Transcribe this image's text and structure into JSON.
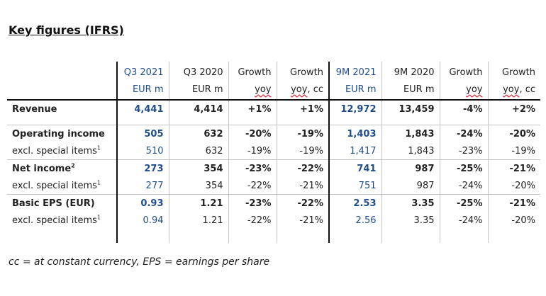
{
  "title": "Key figures (IFRS)",
  "headers": [
    {
      "line1": "Q3 2021",
      "line2": "EUR m",
      "accent": true
    },
    {
      "line1": "Q3 2020",
      "line2": "EUR m",
      "accent": false
    },
    {
      "line1": "Growth",
      "line2_a": "yoy",
      "line2_b": "",
      "accent": false
    },
    {
      "line1": "Growth",
      "line2_a": "yoy",
      "line2_b": ", cc",
      "accent": false
    },
    {
      "line1": "9M 2021",
      "line2": "EUR m",
      "accent": true
    },
    {
      "line1": "9M 2020",
      "line2": "EUR m",
      "accent": false
    },
    {
      "line1": "Growth",
      "line2_a": "yoy",
      "line2_b": "",
      "accent": false
    },
    {
      "line1": "Growth",
      "line2_a": "yoy",
      "line2_b": ", cc",
      "accent": false
    }
  ],
  "rows": [
    {
      "label": "Revenue",
      "sup": "",
      "values": [
        "4,441",
        "4,414",
        "+1%",
        "+1%",
        "12,972",
        "13,459",
        "-4%",
        "+2%"
      ]
    },
    {
      "label": "Operating income",
      "sup": "",
      "values": [
        "505",
        "632",
        "-20%",
        "-19%",
        "1,403",
        "1,843",
        "-24%",
        "-20%"
      ]
    },
    {
      "label": "excl. special items",
      "sup": "1",
      "values": [
        "510",
        "632",
        "-19%",
        "-19%",
        "1,417",
        "1,843",
        "-23%",
        "-19%"
      ]
    },
    {
      "label": "Net income",
      "sup": "2",
      "values": [
        "273",
        "354",
        "-23%",
        "-22%",
        "741",
        "987",
        "-25%",
        "-21%"
      ]
    },
    {
      "label": "excl. special items",
      "sup": "1",
      "values": [
        "277",
        "354",
        "-22%",
        "-21%",
        "751",
        "987",
        "-24%",
        "-20%"
      ]
    },
    {
      "label": "Basic EPS (EUR)",
      "sup": "",
      "values": [
        "0.93",
        "1.21",
        "-23%",
        "-22%",
        "2.53",
        "3.35",
        "-25%",
        "-21%"
      ]
    },
    {
      "label": "excl. special items",
      "sup": "1",
      "values": [
        "0.94",
        "1.21",
        "-22%",
        "-21%",
        "2.56",
        "3.35",
        "-24%",
        "-20%"
      ]
    }
  ],
  "footnote": "cc = at constant currency, EPS = earnings per share",
  "colors": {
    "accent": "#1f4e8c",
    "divider": "#111111",
    "gridline": "#c4c4c4"
  }
}
